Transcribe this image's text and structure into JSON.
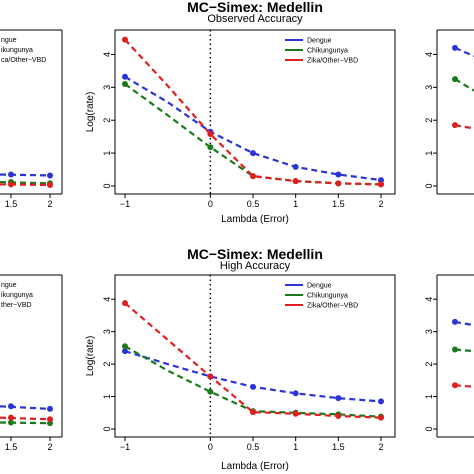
{
  "colors": {
    "Dengue": "#2b35d6",
    "Chikungunya": "#1a7a1a",
    "Zika/Other-VBD": "#e02020"
  },
  "chart_data": [
    {
      "type": "line",
      "title": "MC−Simex: Medellin",
      "subtitle": "Observed Accuracy",
      "xlabel": "Lambda (Error)",
      "ylabel": "Log(rate)",
      "xlim": [
        -1,
        2
      ],
      "ylim": [
        0,
        4.5
      ],
      "x_ticks": [
        "−1",
        "0",
        "0.5",
        "1",
        "1.5",
        "2"
      ],
      "y_ticks": [
        "0",
        "1",
        "2",
        "3",
        "4"
      ],
      "legend": "top-right",
      "x": [
        -1,
        -0.5,
        0,
        0.5,
        1,
        1.5,
        2
      ],
      "series": [
        {
          "name": "Dengue",
          "values": [
            3.32,
            2.55,
            1.65,
            1.0,
            0.58,
            0.35,
            0.18
          ]
        },
        {
          "name": "Chikungunya",
          "values": [
            3.1,
            2.15,
            1.18,
            0.3,
            0.15,
            0.08,
            0.05
          ]
        },
        {
          "name": "Zika/Other−VBD",
          "values": [
            4.45,
            3.05,
            1.58,
            0.3,
            0.15,
            0.08,
            0.05
          ]
        }
      ]
    },
    {
      "type": "line",
      "title": "MC−Simex: Medellin",
      "subtitle": "High Accuracy",
      "xlabel": "Lambda (Error)",
      "ylabel": "Log(rate)",
      "xlim": [
        -1,
        2
      ],
      "ylim": [
        0,
        4.5
      ],
      "x_ticks": [
        "−1",
        "0",
        "0.5",
        "1",
        "1.5",
        "2"
      ],
      "y_ticks": [
        "0",
        "1",
        "2",
        "3",
        "4"
      ],
      "legend": "top-right",
      "x": [
        -1,
        -0.5,
        0,
        0.5,
        1,
        1.5,
        2
      ],
      "series": [
        {
          "name": "Dengue",
          "values": [
            2.4,
            2.0,
            1.62,
            1.3,
            1.1,
            0.95,
            0.85
          ]
        },
        {
          "name": "Chikungunya",
          "values": [
            2.55,
            1.8,
            1.15,
            0.55,
            0.5,
            0.45,
            0.38
          ]
        },
        {
          "name": "Zika/Other−VBD",
          "values": [
            3.88,
            2.75,
            1.62,
            0.52,
            0.47,
            0.4,
            0.35
          ]
        }
      ]
    }
  ],
  "left_partial": {
    "x_ticks": [
      "1.5",
      "2"
    ],
    "legend_fragments_top": [
      "ngue",
      "ikungunya",
      "ca/Other−VBD"
    ],
    "legend_fragments_bottom": [
      "ngue",
      "ikungunya",
      "ther−VBD"
    ],
    "points_top": {
      "Dengue": [
        0.35,
        0.32
      ],
      "Chikungunya": [
        0.12,
        0.08
      ],
      "Zika/Other−VBD": [
        0.05,
        0.03
      ]
    },
    "points_bottom": {
      "Dengue": [
        0.7,
        0.62
      ],
      "Chikungunya": [
        0.2,
        0.18
      ],
      "Zika/Other−VBD": [
        0.35,
        0.3
      ]
    }
  },
  "right_partial": {
    "y_ticks": [
      "0",
      "1",
      "2",
      "3",
      "4"
    ],
    "points_top": {
      "Dengue": [
        4.2,
        3.95
      ],
      "Chikungunya": [
        3.25,
        2.9
      ],
      "Zika/Other−VBD": [
        1.85,
        1.75
      ]
    },
    "points_bottom": {
      "Dengue": [
        3.3,
        3.2
      ],
      "Chikungunya": [
        2.45,
        2.4
      ],
      "Zika/Other−VBD": [
        1.35,
        1.3
      ]
    }
  }
}
